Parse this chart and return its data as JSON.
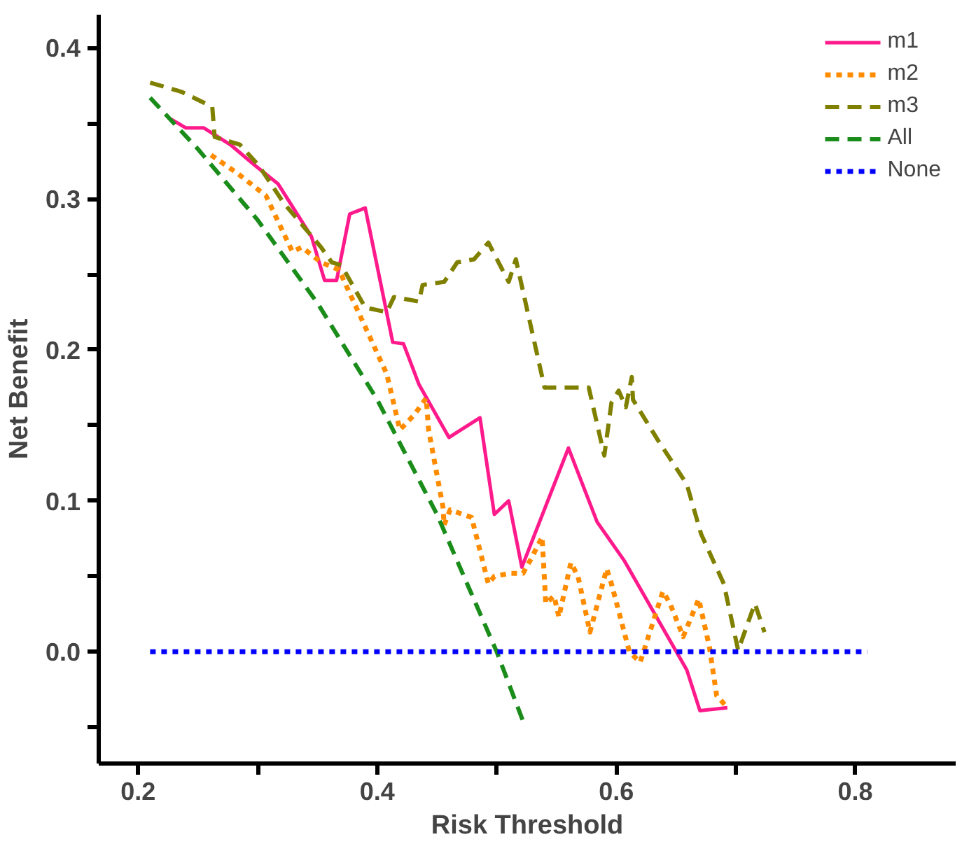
{
  "chart_data": {
    "type": "line",
    "xlabel": "Risk Threshold",
    "ylabel": "Net Benefit",
    "xlim": [
      0.167,
      0.884
    ],
    "ylim": [
      -0.074,
      0.422
    ],
    "xticks": [
      0.2,
      {
        "value": 0.3,
        "label": null
      },
      0.4,
      {
        "value": 0.5,
        "label": null
      },
      0.6,
      {
        "value": 0.7,
        "label": null
      },
      0.8
    ],
    "yticks": [
      {
        "value": -0.05,
        "label": null
      },
      {
        "value": 0,
        "label": "0.0"
      },
      {
        "value": 0.05,
        "label": null
      },
      0.1,
      {
        "value": 0.15,
        "label": null
      },
      0.2,
      {
        "value": 0.25,
        "label": null
      },
      0.3,
      {
        "value": 0.35,
        "label": null
      },
      0.4
    ],
    "grid": false,
    "legend": "top right",
    "marker": "none",
    "series": [
      {
        "name": "m1",
        "color": "#ff1a8c",
        "line_style": "solid",
        "x": [
          0.227,
          0.24,
          0.255,
          0.277,
          0.298,
          0.317,
          0.345,
          0.356,
          0.366,
          0.377,
          0.39,
          0.413,
          0.422,
          0.435,
          0.46,
          0.486,
          0.498,
          0.51,
          0.521,
          0.56,
          0.584,
          0.607,
          0.659,
          0.67,
          0.693
        ],
        "values": [
          0.353,
          0.347,
          0.347,
          0.336,
          0.322,
          0.31,
          0.275,
          0.246,
          0.246,
          0.29,
          0.294,
          0.205,
          0.204,
          0.177,
          0.142,
          0.155,
          0.091,
          0.1,
          0.056,
          0.135,
          0.086,
          0.06,
          -0.012,
          -0.039,
          -0.037
        ]
      },
      {
        "name": "m2",
        "color": "#ff8c00",
        "line_style": "dotted",
        "x": [
          0.261,
          0.283,
          0.307,
          0.329,
          0.337,
          0.353,
          0.368,
          0.386,
          0.408,
          0.419,
          0.431,
          0.441,
          0.443,
          0.455,
          0.456,
          0.461,
          0.479,
          0.493,
          0.498,
          0.511,
          0.522,
          0.529,
          0.538,
          0.541,
          0.548,
          0.552,
          0.562,
          0.568,
          0.578,
          0.592,
          0.596,
          0.611,
          0.62,
          0.639,
          0.645,
          0.656,
          0.669,
          0.678,
          0.684,
          0.692
        ],
        "values": [
          0.329,
          0.317,
          0.302,
          0.265,
          0.268,
          0.258,
          0.253,
          0.222,
          0.184,
          0.147,
          0.157,
          0.168,
          0.147,
          0.096,
          0.084,
          0.094,
          0.089,
          0.045,
          0.05,
          0.052,
          0.052,
          0.062,
          0.076,
          0.032,
          0.037,
          0.023,
          0.059,
          0.05,
          0.013,
          0.055,
          0.045,
          0.0,
          -0.007,
          0.04,
          0.032,
          0.01,
          0.035,
          0.003,
          -0.029,
          -0.036
        ]
      },
      {
        "name": "m3",
        "color": "#808000",
        "line_style": "dashed",
        "x": [
          0.21,
          0.236,
          0.262,
          0.264,
          0.285,
          0.301,
          0.322,
          0.353,
          0.362,
          0.37,
          0.39,
          0.408,
          0.414,
          0.435,
          0.438,
          0.456,
          0.467,
          0.481,
          0.493,
          0.51,
          0.516,
          0.54,
          0.577,
          0.59,
          0.596,
          0.602,
          0.608,
          0.613,
          0.614,
          0.635,
          0.659,
          0.671,
          0.69,
          0.702,
          0.716,
          0.724
        ],
        "values": [
          0.377,
          0.371,
          0.361,
          0.341,
          0.336,
          0.322,
          0.297,
          0.268,
          0.258,
          0.256,
          0.228,
          0.225,
          0.235,
          0.232,
          0.243,
          0.245,
          0.258,
          0.26,
          0.271,
          0.245,
          0.26,
          0.175,
          0.175,
          0.13,
          0.165,
          0.173,
          0.162,
          0.182,
          0.167,
          0.14,
          0.111,
          0.078,
          0.045,
          0.001,
          0.032,
          0.013
        ]
      },
      {
        "name": "All",
        "color": "#1a8c1a",
        "line_style": "dashed",
        "x": [
          0.21,
          0.25,
          0.3,
          0.35,
          0.4,
          0.45,
          0.5,
          0.523
        ],
        "values": [
          0.367,
          0.333,
          0.286,
          0.231,
          0.167,
          0.091,
          0.0,
          -0.048
        ]
      },
      {
        "name": "None",
        "color": "#0000ff",
        "line_style": "dotted",
        "x": [
          0.21,
          0.81
        ],
        "values": [
          0,
          0
        ]
      }
    ]
  }
}
